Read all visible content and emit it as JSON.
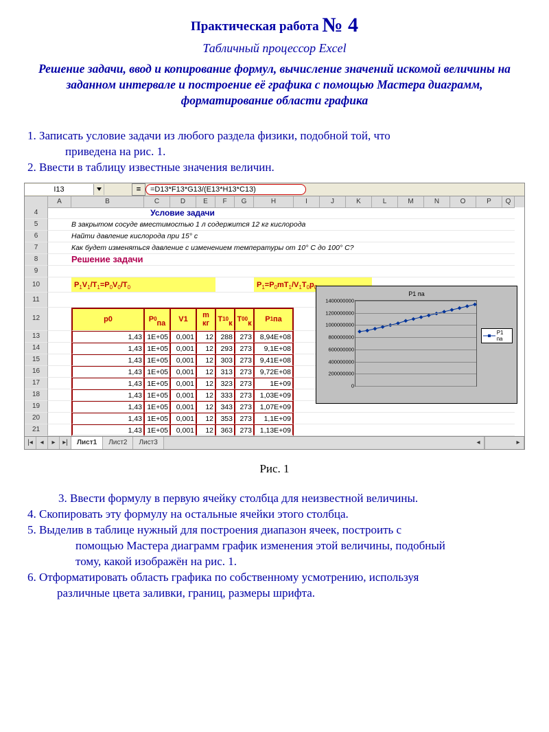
{
  "title_prefix": "Практическая работа ",
  "title_number": "№ 4",
  "subtitle": "Табличный процессор Excel",
  "description": "Решение задачи, ввод и копирование формул, вычисление значений искомой величины на заданном интервале и построение её графика с помощью Мастера диаграмм, форматирование области графика",
  "step1": "1. Записать условие задачи из  любого раздела физики, подобной той, что",
  "step1_cont": "приведена на рис. 1.",
  "step2": "2. Ввести в таблицу известные значения  величин.",
  "fig_caption": "Рис. 1",
  "step3": "3. Ввести формулу в первую ячейку столбца для неизвестной величины.",
  "step4": "4. Скопировать эту формулу на остальные ячейки этого столбца.",
  "step5": "5. Выделив в таблице нужный для построения диапазон ячеек, построить с",
  "step5_l2": "помощью Мастера диаграмм график изменения этой величины, подобный",
  "step5_l3": "тому, какой  изображён на  рис. 1.",
  "step6": "6. Отформатировать  область графика по собственному усмотрению, используя",
  "step6_l2": "различные цвета заливки, границ, размеры шрифта.",
  "excel": {
    "name_box": "I13",
    "formula": "=D13*F13*G13/(E13*H13*C13)",
    "columns": [
      "",
      "A",
      "B",
      "C",
      "D",
      "E",
      "F",
      "G",
      "H",
      "I",
      "J",
      "K",
      "L",
      "M",
      "N",
      "O",
      "P",
      "Q"
    ],
    "row4_title": "Условие задачи",
    "row5": "В закрытом сосуде вместимостью 1 л содержится 12 кг кислорода",
    "row6": "Найти давление кислорода при 15°  с",
    "row7": "Как будет изменяться давление с изменением  температуры от 10°  С до 100°  С?",
    "sol_title": "Решение задачи",
    "row10_f1": "P₁V₁/T₁=P₀V₀/T₀",
    "row10_f2": "P₁=P₀mT₁/V₁T₀p₀",
    "hdr": [
      "p0",
      "P₀\nпа",
      "V1",
      "m\nкг",
      "T₁⁰\nк",
      "T₀⁰\nк",
      "P₁ па"
    ],
    "data": [
      [
        "1,43",
        "1E+05",
        "0,001",
        "12",
        "288",
        "273",
        "8,94E+08"
      ],
      [
        "1,43",
        "1E+05",
        "0,001",
        "12",
        "293",
        "273",
        "9,1E+08"
      ],
      [
        "1,43",
        "1E+05",
        "0,001",
        "12",
        "303",
        "273",
        "9,41E+08"
      ],
      [
        "1,43",
        "1E+05",
        "0,001",
        "12",
        "313",
        "273",
        "9,72E+08"
      ],
      [
        "1,43",
        "1E+05",
        "0,001",
        "12",
        "323",
        "273",
        "1E+09"
      ],
      [
        "1,43",
        "1E+05",
        "0,001",
        "12",
        "333",
        "273",
        "1,03E+09"
      ],
      [
        "1,43",
        "1E+05",
        "0,001",
        "12",
        "343",
        "273",
        "1,07E+09"
      ],
      [
        "1,43",
        "1E+05",
        "0,001",
        "12",
        "353",
        "273",
        "1,1E+09"
      ],
      [
        "1,43",
        "1E+05",
        "0,001",
        "12",
        "363",
        "273",
        "1,13E+09"
      ]
    ],
    "row_numbers": [
      4,
      5,
      6,
      7,
      8,
      9,
      10,
      11,
      12,
      13,
      14,
      15,
      16,
      17,
      18,
      19,
      20,
      21
    ],
    "tabs": {
      "active": "Лист1",
      "t2": "Лист2",
      "t3": "Лист3"
    },
    "chart": {
      "type": "line",
      "title": "P1 па",
      "legend": "P1 па",
      "x_points": [
        0,
        1,
        2,
        3,
        4,
        5,
        6,
        7,
        8,
        9,
        10,
        11,
        12,
        13,
        14,
        15
      ],
      "y_values": [
        0.894,
        0.91,
        0.94,
        0.97,
        1.0,
        1.03,
        1.07,
        1.1,
        1.13,
        1.16,
        1.19,
        1.22,
        1.25,
        1.28,
        1.31,
        1.34
      ],
      "ylim": [
        0,
        1400000000.0
      ],
      "ytick_vals": [
        0,
        200000000,
        400000000,
        600000000,
        800000000,
        1000000000,
        1200000000,
        1400000000
      ],
      "ytick_labels": [
        "0",
        "200000000",
        "400000000",
        "600000000",
        "800000000",
        "1000000000",
        "1200000000",
        "1400000000"
      ],
      "line_color": "#003399",
      "marker_color": "#003399",
      "plot_bg": "#c0c0c0",
      "border_color": "#000"
    }
  }
}
